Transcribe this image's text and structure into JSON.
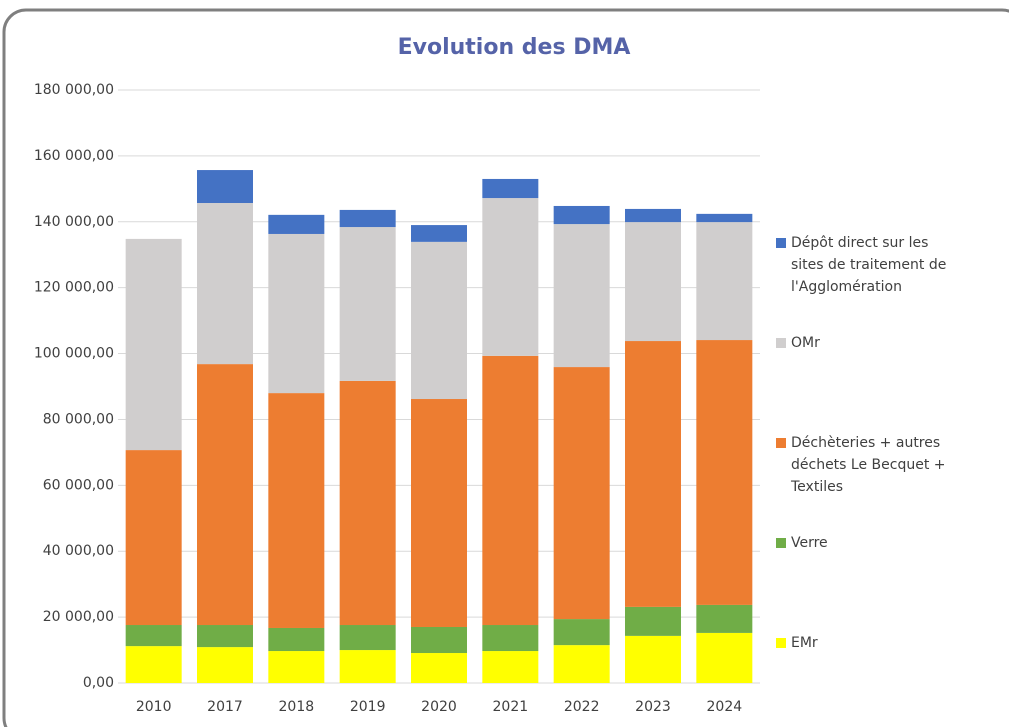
{
  "chart_data": {
    "type": "stacked_bar",
    "title": "Evolution des DMA",
    "categories": [
      "2010",
      "2017",
      "2018",
      "2019",
      "2020",
      "2021",
      "2022",
      "2023",
      "2024"
    ],
    "series": [
      {
        "name": "EMr",
        "color": "#ffff00",
        "values": [
          11200,
          10900,
          9700,
          10000,
          9100,
          9700,
          11500,
          14300,
          15200
        ]
      },
      {
        "name": "Verre",
        "color": "#70ad47",
        "values": [
          6400,
          6700,
          7000,
          7600,
          7900,
          7900,
          7900,
          8800,
          8500
        ]
      },
      {
        "name": "Déchèteries + autres déchets Le Becquet + Textiles",
        "color": "#ed7d31",
        "values": [
          53100,
          79200,
          71300,
          74100,
          69200,
          81700,
          76500,
          80700,
          80400
        ]
      },
      {
        "name": "OMr",
        "color": "#d0cece",
        "values": [
          64100,
          48900,
          48300,
          46700,
          47700,
          47900,
          43400,
          36100,
          35800
        ]
      },
      {
        "name": "Dépôt direct sur les sites de traitement de l'Agglomération",
        "color": "#4472c4",
        "values": [
          0,
          10000,
          5800,
          5200,
          5100,
          5800,
          5500,
          4000,
          2500
        ]
      }
    ],
    "ylim": [
      0,
      180000
    ],
    "yticks": [
      {
        "value": 0,
        "label": "0,00"
      },
      {
        "value": 20000,
        "label": "20 000,00"
      },
      {
        "value": 40000,
        "label": "40 000,00"
      },
      {
        "value": 60000,
        "label": "60 000,00"
      },
      {
        "value": 80000,
        "label": "80 000,00"
      },
      {
        "value": 100000,
        "label": "100 000,00"
      },
      {
        "value": 120000,
        "label": "120 000,00"
      },
      {
        "value": 140000,
        "label": "140 000,00"
      },
      {
        "value": 160000,
        "label": "160 000,00"
      },
      {
        "value": 180000,
        "label": "180 000,00"
      }
    ],
    "grid": true,
    "legend": "right"
  }
}
